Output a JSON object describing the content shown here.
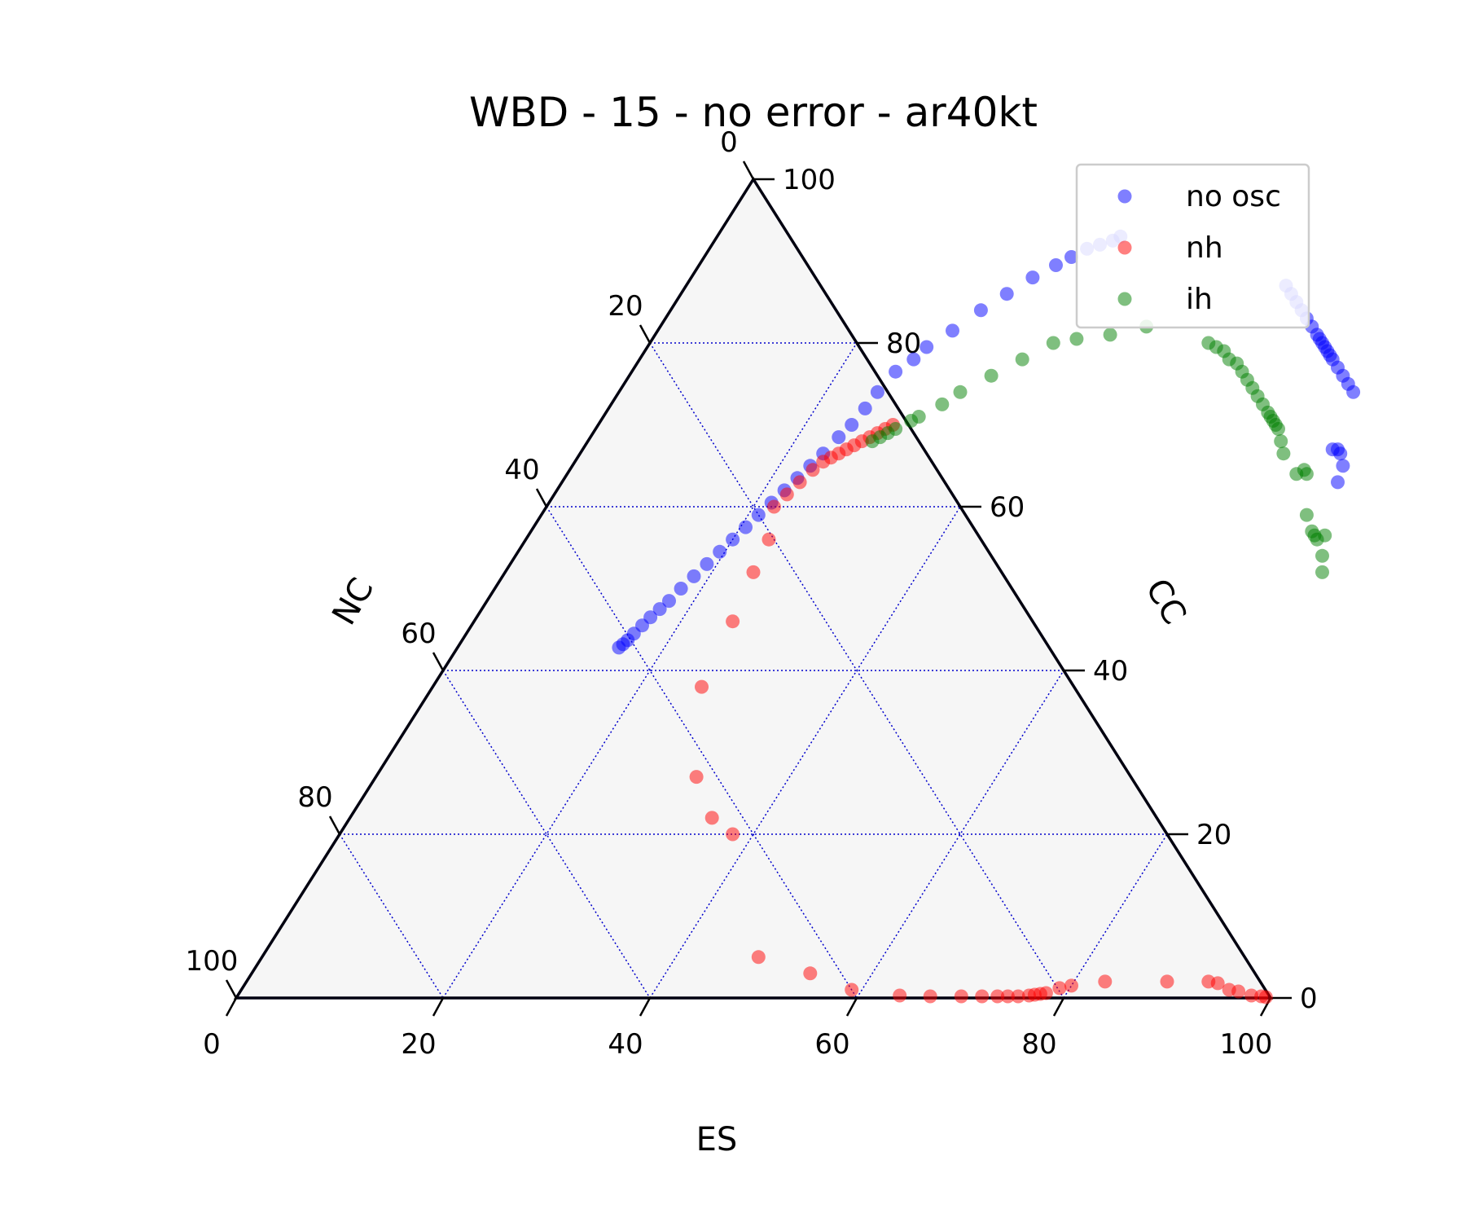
{
  "chart_data": {
    "type": "scatter",
    "subtype": "ternary",
    "title": "WBD - 15 - no error - ar40kt",
    "axes": {
      "bottom": {
        "label": "ES",
        "ticks": [
          "0",
          "20",
          "40",
          "60",
          "80",
          "100"
        ]
      },
      "right": {
        "label": "CC",
        "ticks": [
          "0",
          "20",
          "40",
          "60",
          "80",
          "100"
        ]
      },
      "left": {
        "label": "NC",
        "ticks": [
          "0",
          "20",
          "40",
          "60",
          "80",
          "100"
        ]
      },
      "range": [
        0,
        100
      ]
    },
    "grid": true,
    "legend_position": "top-right",
    "colors": {
      "no osc": "#0000ff",
      "nh": "#ff0000",
      "ih": "#008000",
      "grid": "#0000cc",
      "plot_bg": "#f6f6f6",
      "frame": "#000010"
    },
    "series": [
      {
        "name": "no osc",
        "color": "#0000ff",
        "points": [
          [
            39.0,
            93.0
          ],
          [
            38.5,
            92.5
          ],
          [
            37.5,
            92.0
          ],
          [
            36.5,
            91.5
          ],
          [
            35.5,
            90.5
          ],
          [
            34.5,
            89.5
          ],
          [
            33.0,
            88.0
          ],
          [
            31.5,
            86.0
          ],
          [
            30.0,
            84.0
          ],
          [
            28.5,
            81.5
          ],
          [
            27.0,
            79.5
          ],
          [
            26.5,
            78.0
          ],
          [
            25.5,
            76.5
          ],
          [
            25.0,
            74.0
          ],
          [
            24.8,
            72.0
          ],
          [
            24.5,
            70.0
          ],
          [
            24.0,
            68.5
          ],
          [
            23.5,
            66.5
          ],
          [
            23.0,
            65.0
          ],
          [
            22.5,
            63.5
          ],
          [
            22.0,
            62.0
          ],
          [
            21.5,
            60.5
          ],
          [
            21.0,
            59.0
          ],
          [
            20.5,
            57.5
          ],
          [
            20.0,
            56.0
          ],
          [
            19.5,
            54.5
          ],
          [
            19.0,
            53.0
          ],
          [
            18.5,
            51.5
          ],
          [
            18.0,
            50.0
          ],
          [
            17.6,
            48.5
          ],
          [
            17.2,
            47.5
          ],
          [
            16.8,
            46.5
          ],
          [
            16.5,
            45.5
          ],
          [
            16.2,
            44.5
          ],
          [
            16.0,
            43.7
          ],
          [
            15.8,
            43.2
          ],
          [
            15.6,
            42.8
          ],
          [
            58.0,
            87.0
          ],
          [
            59.0,
            86.0
          ],
          [
            60.0,
            85.0
          ],
          [
            61.0,
            84.0
          ],
          [
            62.0,
            83.0
          ],
          [
            63.0,
            82.0
          ],
          [
            64.0,
            81.0
          ],
          [
            64.5,
            80.5
          ],
          [
            65.0,
            80.0
          ],
          [
            65.5,
            79.5
          ],
          [
            66.0,
            79.0
          ],
          [
            66.5,
            78.5
          ],
          [
            67.0,
            78.0
          ],
          [
            68.0,
            77.0
          ],
          [
            69.0,
            76.0
          ],
          [
            70.0,
            75.0
          ],
          [
            71.0,
            74.0
          ],
          [
            72.5,
            67.0
          ],
          [
            73.0,
            67.0
          ],
          [
            73.5,
            66.5
          ],
          [
            74.5,
            65.0
          ],
          [
            75.0,
            63.0
          ]
        ]
      },
      {
        "name": "nh",
        "color": "#ff0000",
        "points": [
          [
            28.5,
            70.0
          ],
          [
            28.0,
            69.5
          ],
          [
            27.5,
            69.0
          ],
          [
            27.0,
            68.5
          ],
          [
            26.5,
            68.0
          ],
          [
            26.0,
            67.5
          ],
          [
            25.5,
            67.0
          ],
          [
            25.0,
            66.5
          ],
          [
            24.5,
            66.0
          ],
          [
            24.0,
            65.5
          ],
          [
            23.5,
            64.5
          ],
          [
            23.0,
            63.0
          ],
          [
            22.5,
            61.5
          ],
          [
            22.0,
            60.0
          ],
          [
            23.5,
            56.0
          ],
          [
            24.0,
            52.0
          ],
          [
            25.0,
            46.0
          ],
          [
            26.0,
            38.0
          ],
          [
            31.0,
            27.0
          ],
          [
            35.0,
            22.0
          ],
          [
            38.0,
            20.0
          ],
          [
            48.0,
            5.0
          ],
          [
            54.0,
            3.0
          ],
          [
            59.0,
            1.0
          ],
          [
            64.0,
            0.3
          ],
          [
            67.0,
            0.2
          ],
          [
            70.0,
            0.2
          ],
          [
            72.0,
            0.2
          ],
          [
            73.5,
            0.2
          ],
          [
            74.5,
            0.2
          ],
          [
            75.5,
            0.2
          ],
          [
            76.5,
            0.3
          ],
          [
            77.0,
            0.4
          ],
          [
            77.5,
            0.5
          ],
          [
            78.0,
            0.6
          ],
          [
            79.0,
            1.2
          ],
          [
            80.0,
            1.5
          ],
          [
            83.0,
            2.0
          ],
          [
            89.0,
            2.0
          ],
          [
            93.0,
            2.0
          ],
          [
            94.0,
            1.8
          ],
          [
            95.5,
            1.0
          ],
          [
            96.5,
            0.8
          ],
          [
            98.0,
            0.3
          ],
          [
            99.0,
            0.2
          ],
          [
            99.5,
            0.1
          ]
        ]
      },
      {
        "name": "ih",
        "color": "#008000",
        "points": [
          [
            27.5,
            68.0
          ],
          [
            28.0,
            68.5
          ],
          [
            28.5,
            69.0
          ],
          [
            29.0,
            69.5
          ],
          [
            30.0,
            70.5
          ],
          [
            30.5,
            71.0
          ],
          [
            32.0,
            72.5
          ],
          [
            33.0,
            74.0
          ],
          [
            35.0,
            76.0
          ],
          [
            37.0,
            78.0
          ],
          [
            39.0,
            80.0
          ],
          [
            41.0,
            80.5
          ],
          [
            44.0,
            81.0
          ],
          [
            47.0,
            82.0
          ],
          [
            54.0,
            80.0
          ],
          [
            55.0,
            79.5
          ],
          [
            56.0,
            79.0
          ],
          [
            57.0,
            78.0
          ],
          [
            58.0,
            77.5
          ],
          [
            59.0,
            76.5
          ],
          [
            60.0,
            75.5
          ],
          [
            61.0,
            74.5
          ],
          [
            62.0,
            73.5
          ],
          [
            63.0,
            72.5
          ],
          [
            64.0,
            71.5
          ],
          [
            64.5,
            71.0
          ],
          [
            65.0,
            70.5
          ],
          [
            65.5,
            70.0
          ],
          [
            66.0,
            69.5
          ],
          [
            67.0,
            68.0
          ],
          [
            68.0,
            66.5
          ],
          [
            70.5,
            64.0
          ],
          [
            71.0,
            64.5
          ],
          [
            71.5,
            64.0
          ],
          [
            74.0,
            59.0
          ],
          [
            75.5,
            57.0
          ],
          [
            76.0,
            56.5
          ],
          [
            76.5,
            56.0
          ],
          [
            77.0,
            56.5
          ],
          [
            78.0,
            54.0
          ],
          [
            79.0,
            52.0
          ]
        ]
      }
    ]
  }
}
